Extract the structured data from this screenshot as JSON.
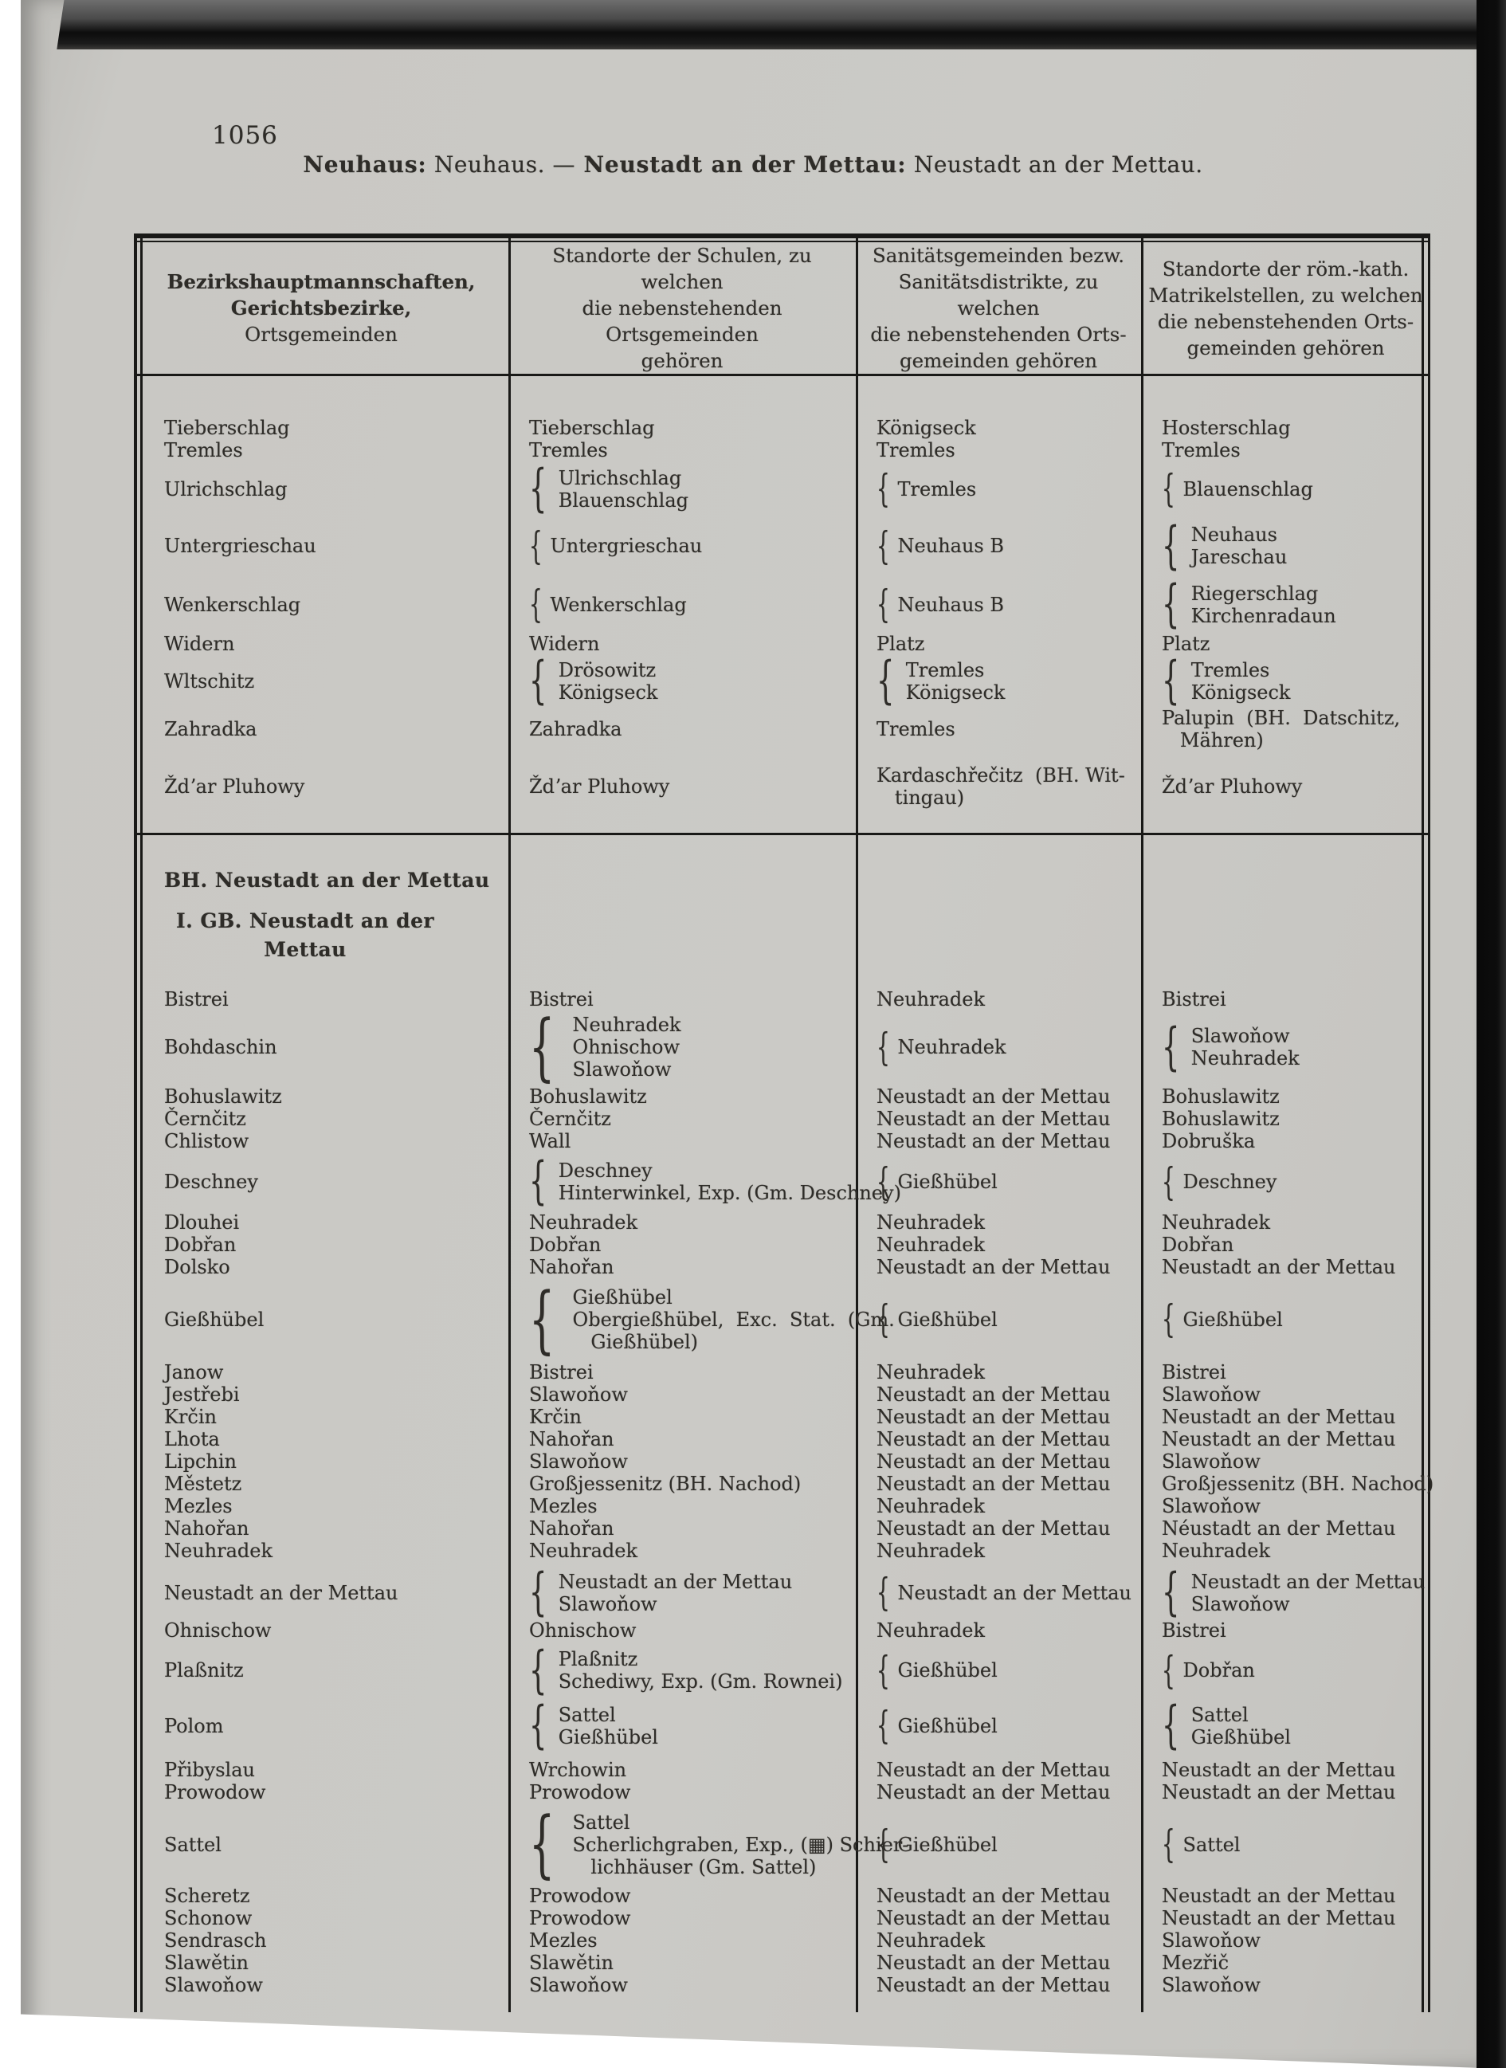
{
  "page": {
    "number": "1056"
  },
  "running_head": {
    "label1": "Neuhaus:",
    "value1": " Neuhaus. ",
    "dash": "—",
    "label2": " Neustadt an der Mettau:",
    "value2": " Neustadt an der Mettau."
  },
  "colors": {
    "page_bg": "#c9c8c4",
    "ink": "#2e2c28",
    "rule": "#191917",
    "scan_edge": "#0c0c0c"
  },
  "table": {
    "header": {
      "col1": [
        {
          "t": "Bezirkshauptmannschaften,",
          "bold": true
        },
        {
          "t": "Gerichtsbezirke,",
          "bold": true
        },
        {
          "t": "Ortsgemeinden",
          "bold": false
        }
      ],
      "col2": [
        {
          "t": "Standorte der Schulen, zu welchen",
          "bold": false
        },
        {
          "t": "die nebenstehenden Ortsgemeinden",
          "bold": false
        },
        {
          "t": "gehören",
          "bold": false
        }
      ],
      "col3": [
        {
          "t": "Sanitätsgemeinden bezw.",
          "bold": false
        },
        {
          "t": "Sanitätsdistrikte, zu welchen",
          "bold": false
        },
        {
          "t": "die nebenstehenden Orts-",
          "bold": false
        },
        {
          "t": "gemeinden gehören",
          "bold": false
        }
      ],
      "col4": [
        {
          "t": "Standorte der röm.-kath.",
          "bold": false
        },
        {
          "t": "Matrikelstellen, zu welchen",
          "bold": false
        },
        {
          "t": "die nebenstehenden Orts-",
          "bold": false
        },
        {
          "t": "gemeinden gehören",
          "bold": false
        }
      ]
    },
    "sections": [
      {
        "rows": [
          {
            "mt": 0,
            "c": [
              "Tieberschlag",
              "Tieberschlag",
              "Königseck",
              "Hosterschlag"
            ]
          },
          {
            "mt": 0,
            "c": [
              "Tremles",
              "Tremles",
              "Tremles",
              "Tremles"
            ]
          },
          {
            "mt": 6,
            "c": [
              "Ulrichschlag",
              {
                "b": 1,
                "l": [
                  "Ulrichschlag",
                  "Blauenschlag"
                ]
              },
              {
                "b": 1,
                "l": [
                  "Tremles"
                ]
              },
              {
                "b": 1,
                "l": [
                  "Blauenschlag"
                ]
              }
            ]
          },
          {
            "mt": 14,
            "c": [
              "Untergrieschau",
              {
                "b": 1,
                "l": [
                  "Untergrieschau"
                ]
              },
              {
                "b": 1,
                "l": [
                  "Neuhaus B"
                ]
              },
              {
                "b": 1,
                "l": [
                  "Neuhaus",
                  "Jareschau"
                ]
              }
            ]
          },
          {
            "mt": 16,
            "c": [
              "Wenkerschlag",
              {
                "b": 1,
                "l": [
                  "Wenkerschlag"
                ]
              },
              {
                "b": 1,
                "l": [
                  "Neuhaus B"
                ]
              },
              {
                "b": 1,
                "l": [
                  "Riegerschlag",
                  "Kirchenradaun"
                ]
              }
            ]
          },
          {
            "mt": 6,
            "c": [
              "Widern",
              "Widern",
              "Platz",
              "Platz"
            ]
          },
          {
            "mt": 4,
            "c": [
              "Wltschitz",
              {
                "b": 1,
                "l": [
                  "Drösowitz",
                  "Königseck"
                ]
              },
              {
                "b": 1,
                "l": [
                  "Tremles",
                  "Königseck"
                ]
              },
              {
                "b": 1,
                "l": [
                  "Tremles",
                  "Königseck"
                ]
              }
            ]
          },
          {
            "mt": 4,
            "c": [
              "Zahradka",
              "Zahradka",
              "Tremles",
              {
                "w": 1,
                "l": [
                  "Palupin  (BH.  Datschitz,",
                  "   Mähren)"
                ]
              }
            ]
          },
          {
            "mt": 16,
            "c": [
              "Ždʼar Pluhowy",
              "Ždʼar Pluhowy",
              {
                "w": 1,
                "l": [
                  "Kardaschřečitz  (BH. Wit-",
                  "   tingau)"
                ]
              },
              "Ždʼar Pluhowy"
            ]
          }
        ]
      },
      {
        "heading1": "BH. Neustadt an der Mettau",
        "heading2": [
          "I.  GB.  Neustadt  an  der",
          "Mettau"
        ],
        "rows": [
          {
            "mt": 0,
            "c": [
              "Bistrei",
              "Bistrei",
              "Neuhradek",
              "Bistrei"
            ]
          },
          {
            "mt": 4,
            "c": [
              "Bohdaschin",
              {
                "b": 1,
                "l": [
                  "Neuhradek",
                  "Ohnischow",
                  "Slawoňow"
                ]
              },
              {
                "b": 1,
                "l": [
                  "Neuhradek"
                ]
              },
              {
                "b": 1,
                "l": [
                  "Slawoňow",
                  "Neuhradek"
                ]
              }
            ]
          },
          {
            "mt": 6,
            "c": [
              "Bohuslawitz",
              "Bohuslawitz",
              "Neustadt an der Mettau",
              "Bohuslawitz"
            ]
          },
          {
            "mt": 0,
            "c": [
              "Černčitz",
              "Černčitz",
              "Neustadt an der Mettau",
              "Bohuslawitz"
            ]
          },
          {
            "mt": 0,
            "c": [
              "Chlistow",
              "Wall",
              "Neustadt an der Mettau",
              "Dobruška"
            ]
          },
          {
            "mt": 8,
            "c": [
              "Deschney",
              {
                "b": 1,
                "l": [
                  "Deschney",
                  "Hinterwinkel, Exp. (Gm. Deschney)"
                ]
              },
              {
                "b": 1,
                "l": [
                  "Gießhübel"
                ]
              },
              {
                "b": 1,
                "l": [
                  "Deschney"
                ]
              }
            ]
          },
          {
            "mt": 8,
            "c": [
              "Dlouhei",
              "Neuhradek",
              "Neuhradek",
              "Neuhradek"
            ]
          },
          {
            "mt": 0,
            "c": [
              "Dobřan",
              "Dobřan",
              "Neuhradek",
              "Dobřan"
            ]
          },
          {
            "mt": 0,
            "c": [
              "Dolsko",
              "Nahořan",
              "Neustadt an der Mettau",
              "Neustadt an der Mettau"
            ]
          },
          {
            "mt": 10,
            "c": [
              "Gießhübel",
              {
                "b": 1,
                "l": [
                  "Gießhübel",
                  "Obergießhübel,  Exc.  Stat.  (Gm.",
                  "   Gießhübel)"
                ]
              },
              {
                "b": 1,
                "l": [
                  "Gießhübel"
                ]
              },
              {
                "b": 1,
                "l": [
                  "Gießhübel"
                ]
              }
            ]
          },
          {
            "mt": 10,
            "c": [
              "Janow",
              "Bistrei",
              "Neuhradek",
              "Bistrei"
            ]
          },
          {
            "mt": 0,
            "c": [
              "Jestřebi",
              "Slawoňow",
              "Neustadt an der Mettau",
              "Slawoňow"
            ]
          },
          {
            "mt": 0,
            "c": [
              "Krčin",
              "Krčin",
              "Neustadt an der Mettau",
              "Neustadt an der Mettau"
            ]
          },
          {
            "mt": 0,
            "c": [
              "Lhota",
              "Nahořan",
              "Neustadt an der Mettau",
              "Neustadt an der Mettau"
            ]
          },
          {
            "mt": 0,
            "c": [
              "Lipchin",
              "Slawoňow",
              "Neustadt an der Mettau",
              "Slawoňow"
            ]
          },
          {
            "mt": 0,
            "c": [
              "Městetz",
              "Großjessenitz (BH. Nachod)",
              "Neustadt an der Mettau",
              "Großjessenitz (BH. Nachod)"
            ]
          },
          {
            "mt": 0,
            "c": [
              "Mezles",
              "Mezles",
              "Neuhradek",
              "Slawoňow"
            ]
          },
          {
            "mt": 0,
            "c": [
              "Nahořan",
              "Nahořan",
              "Neustadt an der Mettau",
              "Néustadt an der Mettau"
            ]
          },
          {
            "mt": 0,
            "c": [
              "Neuhradek",
              "Neuhradek",
              "Neuhradek",
              "Neuhradek"
            ]
          },
          {
            "mt": 10,
            "c": [
              "Neustadt an der Mettau",
              {
                "b": 1,
                "l": [
                  "Neustadt an der Mettau",
                  "Slawoňow"
                ]
              },
              {
                "b": 1,
                "l": [
                  "Neustadt an der Mettau"
                ]
              },
              {
                "b": 1,
                "l": [
                  "Neustadt an der Mettau",
                  "Slawoňow"
                ]
              }
            ]
          },
          {
            "mt": 4,
            "c": [
              "Ohnischow",
              "Ohnischow",
              "Neuhradek",
              "Bistrei"
            ]
          },
          {
            "mt": 8,
            "c": [
              "Plaßnitz",
              {
                "b": 1,
                "l": [
                  "Plaßnitz",
                  "Schediwy, Exp. (Gm. Rownei)"
                ]
              },
              {
                "b": 1,
                "l": [
                  "Gießhübel"
                ]
              },
              {
                "b": 1,
                "l": [
                  "Dobřan"
                ]
              }
            ]
          },
          {
            "mt": 12,
            "c": [
              "Polom",
              {
                "b": 1,
                "l": [
                  "Sattel",
                  "Gießhübel"
                ]
              },
              {
                "b": 1,
                "l": [
                  "Gießhübel"
                ]
              },
              {
                "b": 1,
                "l": [
                  "Sattel",
                  "Gießhübel"
                ]
              }
            ]
          },
          {
            "mt": 12,
            "c": [
              "Přibyslau",
              "Wrchowin",
              "Neustadt an der Mettau",
              "Neustadt an der Mettau"
            ]
          },
          {
            "mt": 0,
            "c": [
              "Prowodow",
              "Prowodow",
              "Neustadt an der Mettau",
              "Neustadt an der Mettau"
            ]
          },
          {
            "mt": 10,
            "c": [
              "Sattel",
              {
                "b": 1,
                "l": [
                  "Sattel",
                  "Scherlichgraben, Exp., (▦) Schier-",
                  "   lichhäuser (Gm. Sattel)"
                ]
              },
              {
                "b": 1,
                "l": [
                  "Gießhübel"
                ]
              },
              {
                "b": 1,
                "l": [
                  "Sattel"
                ]
              }
            ]
          },
          {
            "mt": 8,
            "c": [
              "Scheretz",
              "Prowodow",
              "Neustadt an der Mettau",
              "Neustadt an der Mettau"
            ]
          },
          {
            "mt": 0,
            "c": [
              "Schonow",
              "Prowodow",
              "Neustadt an der Mettau",
              "Neustadt an der Mettau"
            ]
          },
          {
            "mt": 0,
            "c": [
              "Sendrasch",
              "Mezles",
              "Neuhradek",
              "Slawoňow"
            ]
          },
          {
            "mt": 0,
            "c": [
              "Slawětin",
              "Slawětin",
              "Neustadt an der Mettau",
              "Mezřič"
            ]
          },
          {
            "mt": 0,
            "c": [
              "Slawoňow",
              "Slawoňow",
              "Neustadt an der Mettau",
              "Slawoňow"
            ]
          }
        ]
      }
    ]
  }
}
